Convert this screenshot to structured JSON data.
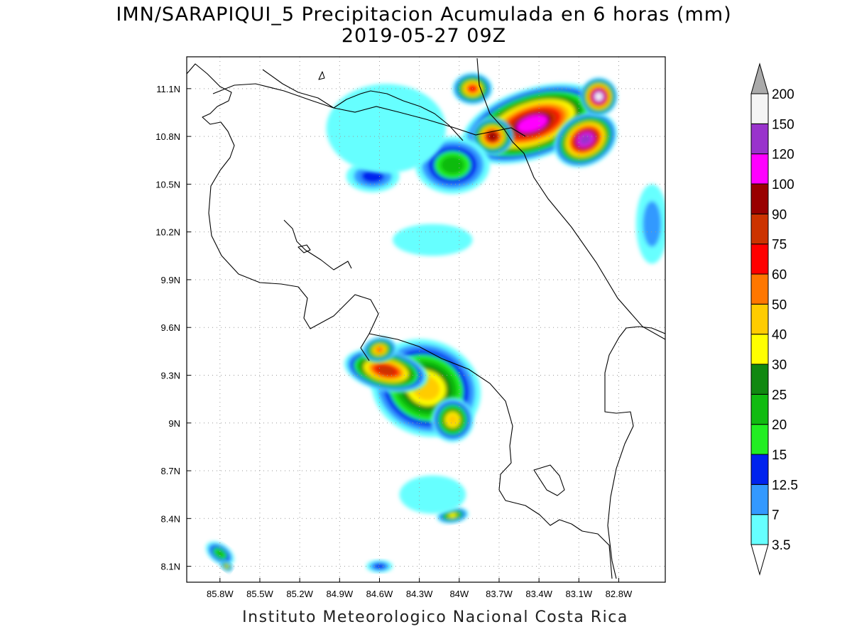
{
  "title": {
    "line1": "IMN/SARAPIQUI_5 Precipitacion Acumulada en 6 horas (mm)",
    "line2": "2019-05-27 09Z"
  },
  "footer": "Instituto Meteorologico Nacional Costa Rica",
  "map": {
    "lon_range": [
      -86.05,
      -82.45
    ],
    "lat_range": [
      8.0,
      11.3
    ],
    "x_ticks": [
      {
        "value": -85.8,
        "label": "85.8W"
      },
      {
        "value": -85.5,
        "label": "85.5W"
      },
      {
        "value": -85.2,
        "label": "85.2W"
      },
      {
        "value": -84.9,
        "label": "84.9W"
      },
      {
        "value": -84.6,
        "label": "84.6W"
      },
      {
        "value": -84.3,
        "label": "84.3W"
      },
      {
        "value": -84.0,
        "label": "84W"
      },
      {
        "value": -83.7,
        "label": "83.7W"
      },
      {
        "value": -83.4,
        "label": "83.4W"
      },
      {
        "value": -83.1,
        "label": "83.1W"
      },
      {
        "value": -82.8,
        "label": "82.8W"
      }
    ],
    "y_ticks": [
      {
        "value": 8.1,
        "label": "8.1N"
      },
      {
        "value": 8.4,
        "label": "8.4N"
      },
      {
        "value": 8.7,
        "label": "8.7N"
      },
      {
        "value": 9.0,
        "label": "9N"
      },
      {
        "value": 9.3,
        "label": "9.3N"
      },
      {
        "value": 9.6,
        "label": "9.6N"
      },
      {
        "value": 9.9,
        "label": "9.9N"
      },
      {
        "value": 10.2,
        "label": "10.2N"
      },
      {
        "value": 10.5,
        "label": "10.5N"
      },
      {
        "value": 10.8,
        "label": "10.8N"
      },
      {
        "value": 11.1,
        "label": "11.1N"
      }
    ],
    "grid": true
  },
  "colorbar": {
    "unit": "mm",
    "levels": [
      "3.5",
      "7",
      "12.5",
      "15",
      "20",
      "25",
      "30",
      "40",
      "50",
      "60",
      "75",
      "90",
      "100",
      "120",
      "150",
      "200"
    ],
    "colors": [
      "#66ffff",
      "#3399ff",
      "#0022ee",
      "#22ee22",
      "#11bb11",
      "#118811",
      "#ffff00",
      "#ffcc00",
      "#ff7700",
      "#ff0000",
      "#cc3300",
      "#990000",
      "#ff00ff",
      "#9933cc",
      "#f4f4f4",
      "#aaaaaa"
    ]
  },
  "precip_cells": [
    {
      "lon": -84.25,
      "lat": 9.22,
      "rx": 0.42,
      "ry": 0.3,
      "value": 48,
      "rot": 22
    },
    {
      "lon": -84.55,
      "lat": 9.33,
      "rx": 0.32,
      "ry": 0.13,
      "value": 85,
      "rot": 12
    },
    {
      "lon": -84.05,
      "lat": 9.02,
      "rx": 0.16,
      "ry": 0.14,
      "value": 45,
      "rot": 0
    },
    {
      "lon": -84.6,
      "lat": 9.46,
      "rx": 0.13,
      "ry": 0.08,
      "value": 55,
      "rot": -10
    },
    {
      "lon": -83.45,
      "lat": 10.88,
      "rx": 0.55,
      "ry": 0.22,
      "value": 110,
      "rot": -18
    },
    {
      "lon": -83.05,
      "lat": 10.78,
      "rx": 0.25,
      "ry": 0.16,
      "value": 145,
      "rot": -30
    },
    {
      "lon": -82.95,
      "lat": 11.05,
      "rx": 0.14,
      "ry": 0.12,
      "value": 170,
      "rot": 0
    },
    {
      "lon": -83.75,
      "lat": 10.8,
      "rx": 0.16,
      "ry": 0.12,
      "value": 92,
      "rot": 0
    },
    {
      "lon": -83.9,
      "lat": 11.1,
      "rx": 0.15,
      "ry": 0.1,
      "value": 65,
      "rot": 0
    },
    {
      "lon": -84.05,
      "lat": 10.62,
      "rx": 0.28,
      "ry": 0.18,
      "value": 22,
      "rot": 0
    },
    {
      "lon": -84.65,
      "lat": 10.55,
      "rx": 0.2,
      "ry": 0.1,
      "value": 13,
      "rot": 0
    },
    {
      "lon": -84.55,
      "lat": 10.85,
      "rx": 0.45,
      "ry": 0.28,
      "value": 5,
      "rot": 0
    },
    {
      "lon": -84.2,
      "lat": 10.15,
      "rx": 0.3,
      "ry": 0.1,
      "value": 5,
      "rot": 0
    },
    {
      "lon": -84.05,
      "lat": 8.42,
      "rx": 0.12,
      "ry": 0.05,
      "value": 36,
      "rot": -8
    },
    {
      "lon": -85.8,
      "lat": 8.18,
      "rx": 0.12,
      "ry": 0.06,
      "value": 22,
      "rot": 35
    },
    {
      "lon": -85.75,
      "lat": 8.1,
      "rx": 0.05,
      "ry": 0.03,
      "value": 35,
      "rot": 35
    },
    {
      "lon": -84.6,
      "lat": 8.1,
      "rx": 0.1,
      "ry": 0.04,
      "value": 14,
      "rot": 0
    },
    {
      "lon": -84.2,
      "lat": 8.55,
      "rx": 0.25,
      "ry": 0.12,
      "value": 5,
      "rot": 0
    },
    {
      "lon": -82.55,
      "lat": 10.25,
      "rx": 0.12,
      "ry": 0.25,
      "value": 9,
      "rot": 0
    }
  ]
}
